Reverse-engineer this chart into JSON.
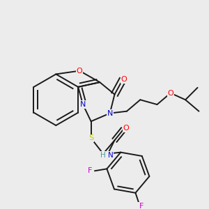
{
  "bg_color": "#ececec",
  "bond_color": "#1a1a1a",
  "atom_colors": {
    "O": "#ff0000",
    "N": "#0000cd",
    "S": "#cccc00",
    "F": "#cc00cc",
    "H": "#4a9a9a",
    "C": "#1a1a1a"
  },
  "figsize": [
    3.0,
    3.0
  ],
  "dpi": 100
}
